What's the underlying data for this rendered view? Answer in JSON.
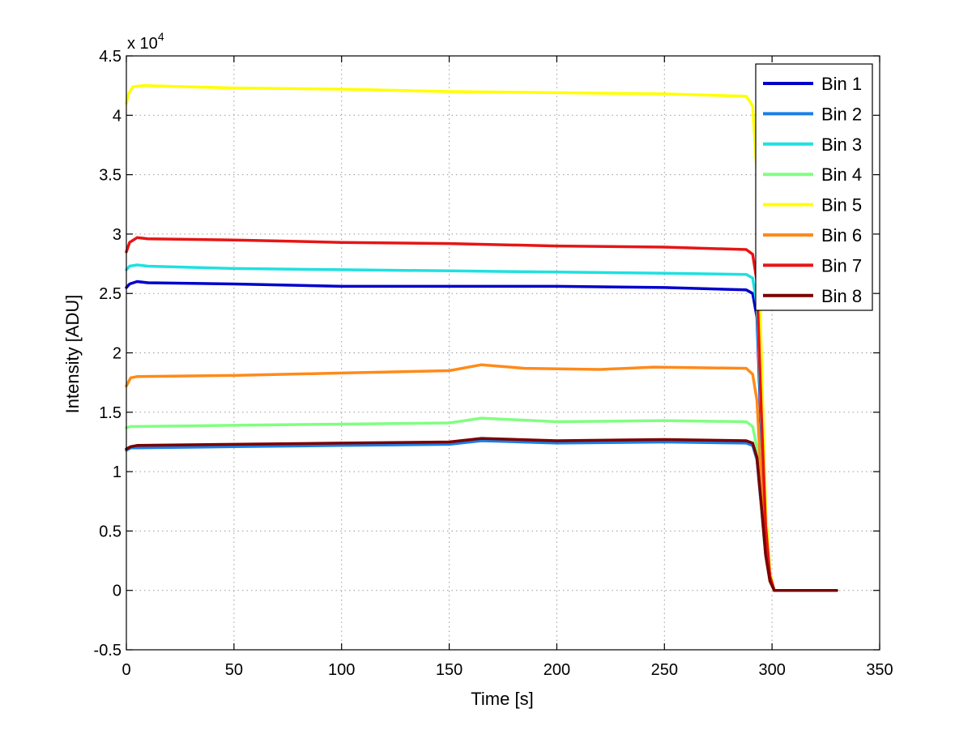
{
  "chart_data": {
    "type": "line",
    "title": "",
    "xlabel": "Time [s]",
    "ylabel": "Intensity [ADU]",
    "y_exponent_label": "x 10",
    "y_exponent_power": "4",
    "xlim": [
      0,
      350
    ],
    "ylim": [
      -0.5,
      4.5
    ],
    "y_scale_factor": 10000,
    "x_ticks": [
      0,
      50,
      100,
      150,
      200,
      250,
      300,
      350
    ],
    "x_tick_labels": [
      "0",
      "50",
      "100",
      "150",
      "200",
      "250",
      "300",
      "350"
    ],
    "y_ticks": [
      -0.5,
      0,
      0.5,
      1,
      1.5,
      2,
      2.5,
      3,
      3.5,
      4,
      4.5
    ],
    "y_tick_labels": [
      "-0.5",
      "0",
      "0.5",
      "1",
      "1.5",
      "2",
      "2.5",
      "3",
      "3.5",
      "4",
      "4.5"
    ],
    "grid": true,
    "legend_position": "top-right",
    "series": [
      {
        "name": "Bin 1",
        "color": "#0000cc",
        "x": [
          0,
          1.5,
          5,
          10,
          50,
          100,
          150,
          165,
          200,
          250,
          288,
          291,
          293,
          295,
          297,
          299,
          301,
          330
        ],
        "y": [
          2.55,
          2.58,
          2.6,
          2.59,
          2.58,
          2.56,
          2.56,
          2.56,
          2.56,
          2.55,
          2.53,
          2.5,
          2.3,
          1.3,
          0.5,
          0.15,
          0,
          0
        ]
      },
      {
        "name": "Bin 2",
        "color": "#1a7fe6",
        "x": [
          0,
          2,
          5,
          50,
          100,
          150,
          165,
          200,
          250,
          288,
          291,
          293,
          295,
          297,
          299,
          301,
          330
        ],
        "y": [
          1.18,
          1.2,
          1.2,
          1.21,
          1.22,
          1.23,
          1.26,
          1.24,
          1.25,
          1.24,
          1.22,
          1.1,
          0.7,
          0.3,
          0.08,
          0,
          0
        ]
      },
      {
        "name": "Bin 3",
        "color": "#20e0e0",
        "x": [
          0,
          1.5,
          5,
          10,
          50,
          100,
          150,
          200,
          250,
          288,
          291,
          293,
          295,
          297,
          299,
          301,
          330
        ],
        "y": [
          2.7,
          2.73,
          2.74,
          2.73,
          2.71,
          2.7,
          2.69,
          2.68,
          2.67,
          2.66,
          2.63,
          2.4,
          1.4,
          0.5,
          0.12,
          0,
          0
        ]
      },
      {
        "name": "Bin 4",
        "color": "#80ff80",
        "x": [
          0,
          2,
          5,
          50,
          100,
          150,
          165,
          200,
          250,
          288,
          291,
          293,
          295,
          297,
          299,
          301,
          330
        ],
        "y": [
          1.37,
          1.38,
          1.38,
          1.39,
          1.4,
          1.41,
          1.45,
          1.42,
          1.43,
          1.42,
          1.38,
          1.2,
          0.7,
          0.3,
          0.08,
          0,
          0
        ]
      },
      {
        "name": "Bin 5",
        "color": "#ffff00",
        "x": [
          0,
          1,
          3,
          8,
          50,
          100,
          150,
          200,
          250,
          288,
          291,
          293,
          295,
          297,
          299,
          301,
          330
        ],
        "y": [
          4.1,
          4.18,
          4.24,
          4.25,
          4.23,
          4.22,
          4.2,
          4.19,
          4.18,
          4.16,
          4.08,
          3.5,
          2.0,
          0.7,
          0.15,
          0,
          0
        ]
      },
      {
        "name": "Bin 6",
        "color": "#ff8a1a",
        "x": [
          0,
          2,
          5,
          50,
          100,
          150,
          165,
          185,
          220,
          245,
          288,
          291,
          293,
          295,
          297,
          299,
          301,
          330
        ],
        "y": [
          1.72,
          1.79,
          1.8,
          1.81,
          1.83,
          1.85,
          1.9,
          1.87,
          1.86,
          1.88,
          1.87,
          1.82,
          1.6,
          0.9,
          0.35,
          0.08,
          0,
          0
        ]
      },
      {
        "name": "Bin 7",
        "color": "#e61515",
        "x": [
          0,
          1.5,
          5,
          10,
          50,
          100,
          150,
          200,
          250,
          288,
          291,
          293,
          295,
          297,
          299,
          301,
          330
        ],
        "y": [
          2.85,
          2.93,
          2.97,
          2.96,
          2.95,
          2.93,
          2.92,
          2.9,
          2.89,
          2.87,
          2.83,
          2.6,
          1.5,
          0.55,
          0.12,
          0,
          0
        ]
      },
      {
        "name": "Bin 8",
        "color": "#7a0000",
        "x": [
          0,
          2,
          5,
          50,
          100,
          150,
          165,
          200,
          250,
          288,
          291,
          293,
          295,
          297,
          299,
          301,
          330
        ],
        "y": [
          1.19,
          1.21,
          1.22,
          1.23,
          1.24,
          1.25,
          1.28,
          1.26,
          1.27,
          1.26,
          1.24,
          1.12,
          0.72,
          0.3,
          0.08,
          0,
          0
        ]
      }
    ]
  }
}
